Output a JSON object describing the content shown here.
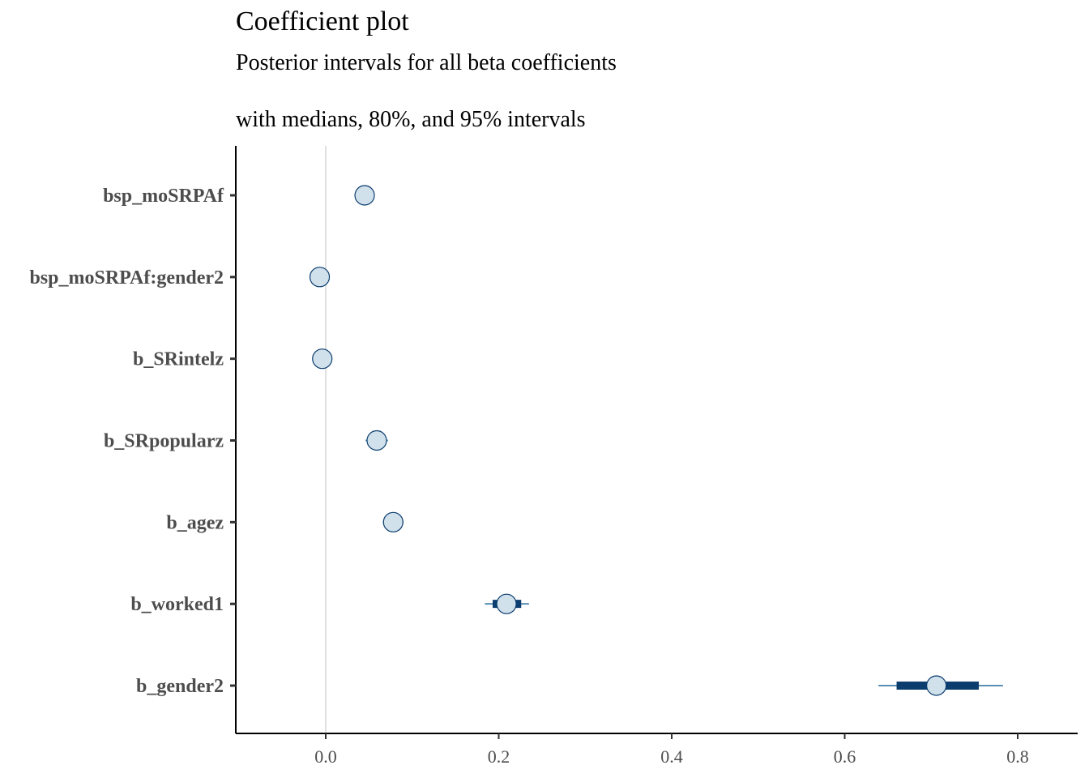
{
  "chart_data": {
    "type": "coefficient-interval",
    "title": "Coefficient plot",
    "subtitle": "Posterior intervals for all beta coefficients",
    "subtitle2": "with medians, 80%, and 95% intervals",
    "xlabel": "",
    "ylabel": "",
    "xlim": [
      -0.1,
      0.85
    ],
    "xticks": [
      0.0,
      0.2,
      0.4,
      0.6,
      0.8
    ],
    "xtick_labels": [
      "0.0",
      "0.2",
      "0.4",
      "0.6",
      "0.8"
    ],
    "reference_line": 0.0,
    "grid": false,
    "colors": {
      "outer_interval": "#5a8fb3",
      "inner_interval": "#0b3d6e",
      "point_fill": "#d1e1ec",
      "point_stroke": "#0b3d6e",
      "reference_line": "#e0e0e0"
    },
    "series": [
      {
        "name": "bsp_moSRPAf",
        "median": 0.045,
        "inner": [
          0.04,
          0.05
        ],
        "outer": [
          0.035,
          0.055
        ]
      },
      {
        "name": "bsp_moSRPAf:gender2",
        "median": -0.007,
        "inner": [
          -0.012,
          -0.002
        ],
        "outer": [
          -0.018,
          0.004
        ]
      },
      {
        "name": "b_SRintelz",
        "median": -0.004,
        "inner": [
          -0.009,
          0.001
        ],
        "outer": [
          -0.014,
          0.006
        ]
      },
      {
        "name": "b_SRpopularz",
        "median": 0.059,
        "inner": [
          0.053,
          0.065
        ],
        "outer": [
          0.046,
          0.072
        ]
      },
      {
        "name": "b_agez",
        "median": 0.078,
        "inner": [
          0.072,
          0.084
        ],
        "outer": [
          0.066,
          0.09
        ]
      },
      {
        "name": "b_worked1",
        "median": 0.209,
        "inner": [
          0.193,
          0.226
        ],
        "outer": [
          0.184,
          0.235
        ]
      },
      {
        "name": "b_gender2",
        "median": 0.706,
        "inner": [
          0.66,
          0.755
        ],
        "outer": [
          0.639,
          0.783
        ]
      }
    ]
  }
}
